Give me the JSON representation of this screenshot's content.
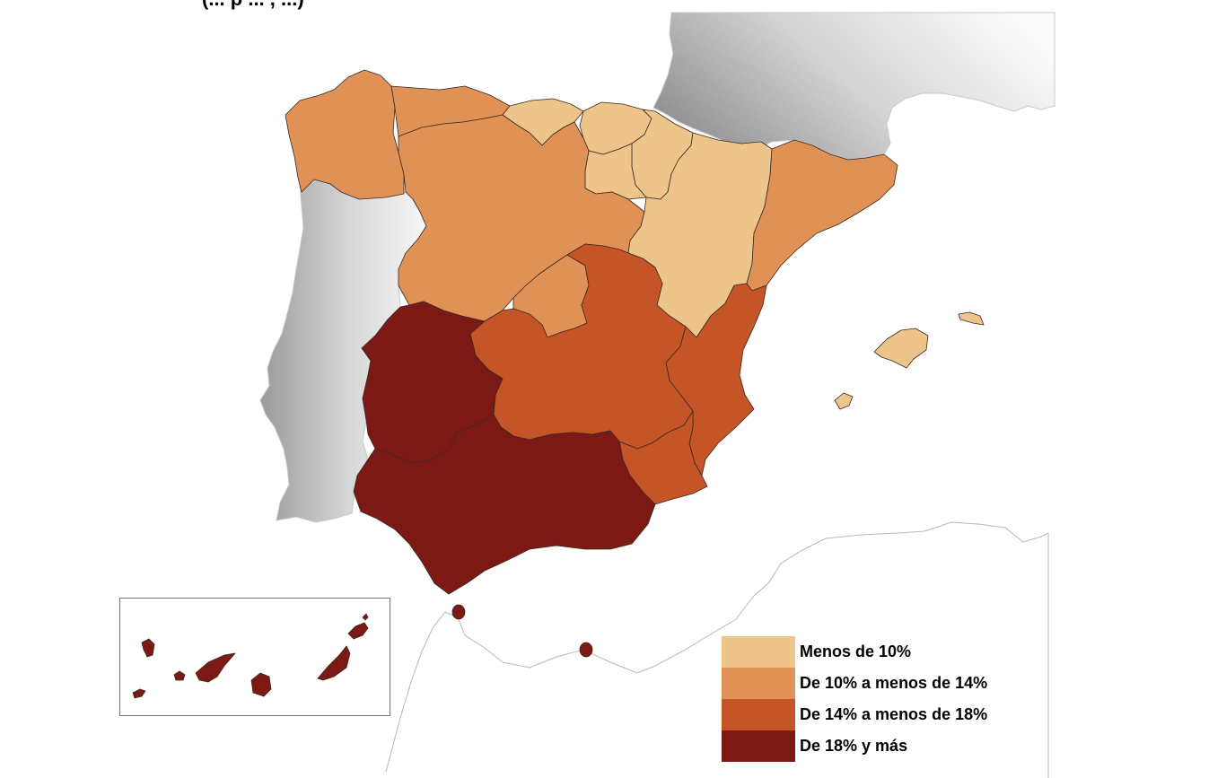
{
  "title_fragment": "(... p ... , ...)",
  "colors": {
    "menos_10": "#EDC48A",
    "de_10_14": "#E09256",
    "de_14_18": "#C55527",
    "de_18_mas": "#7C1915",
    "land_gray_dark": "#9a9a9a",
    "land_gray_light": "#f4f4f4"
  },
  "legend": {
    "items": [
      {
        "label": "Menos de 10%",
        "color": "#EDC48A"
      },
      {
        "label": "De 10% a menos de 14%",
        "color": "#E09256"
      },
      {
        "label": "De 14% a menos de 18%",
        "color": "#C55527"
      },
      {
        "label": "De 18% y más",
        "color": "#7C1915"
      }
    ]
  },
  "regions": [
    {
      "name": "Galicia",
      "class": "De 10% a menos de 14%"
    },
    {
      "name": "Asturias",
      "class": "De 10% a menos de 14%"
    },
    {
      "name": "Cantabria",
      "class": "Menos de 10%"
    },
    {
      "name": "País Vasco",
      "class": "Menos de 10%"
    },
    {
      "name": "Navarra",
      "class": "Menos de 10%"
    },
    {
      "name": "La Rioja",
      "class": "Menos de 10%"
    },
    {
      "name": "Aragón",
      "class": "Menos de 10%"
    },
    {
      "name": "Cataluña",
      "class": "De 10% a menos de 14%"
    },
    {
      "name": "Castilla y León",
      "class": "De 10% a menos de 14%"
    },
    {
      "name": "Madrid",
      "class": "De 10% a menos de 14%"
    },
    {
      "name": "Castilla-La Mancha",
      "class": "De 14% a menos de 18%"
    },
    {
      "name": "Comunitat Valenciana",
      "class": "De 14% a menos de 18%"
    },
    {
      "name": "Región de Murcia",
      "class": "De 14% a menos de 18%"
    },
    {
      "name": "Extremadura",
      "class": "De 18% y más"
    },
    {
      "name": "Andalucía",
      "class": "De 18% y más"
    },
    {
      "name": "Illes Balears",
      "class": "Menos de 10%"
    },
    {
      "name": "Canarias",
      "class": "De 18% y más"
    },
    {
      "name": "Ceuta",
      "class": "De 18% y más"
    },
    {
      "name": "Melilla",
      "class": "De 18% y más"
    }
  ]
}
